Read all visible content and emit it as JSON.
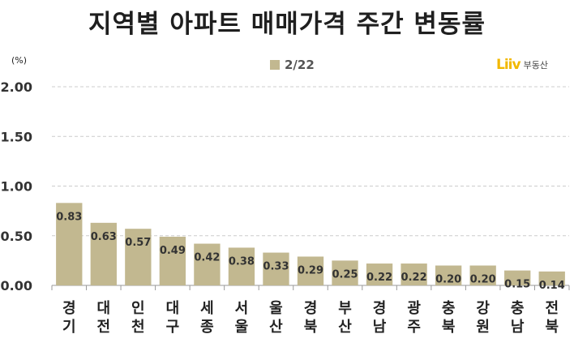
{
  "title": "지역별 아파트 매매가격 주간 변동률",
  "unit_label": "(%)",
  "logo": {
    "mark": "Liiv",
    "text": "부동산",
    "color": "#f2b800"
  },
  "colors": {
    "bar": "#c2b890",
    "axis": "#999999",
    "grid": "#cccccc"
  },
  "chart_data": {
    "type": "bar",
    "title": "지역별 아파트 매매가격 주간 변동률",
    "xlabel": "",
    "ylabel": "(%)",
    "categories": [
      "경기",
      "대전",
      "인천",
      "대구",
      "세종",
      "서울",
      "울산",
      "경북",
      "부산",
      "경남",
      "광주",
      "충북",
      "강원",
      "충남",
      "전북"
    ],
    "series": [
      {
        "name": "2/22",
        "values": [
          0.83,
          0.63,
          0.57,
          0.49,
          0.42,
          0.38,
          0.33,
          0.29,
          0.25,
          0.22,
          0.22,
          0.2,
          0.2,
          0.15,
          0.14
        ]
      }
    ],
    "value_labels": [
      "0.83",
      "0.63",
      "0.57",
      "0.49",
      "0.42",
      "0.38",
      "0.33",
      "0.29",
      "0.25",
      "0.22",
      "0.22",
      "0.20",
      "0.20",
      "0.15",
      "0.14"
    ],
    "ylim": [
      0,
      2.0
    ],
    "yticks": [
      0,
      0.5,
      1.0,
      1.5,
      2.0
    ],
    "ytick_labels": [
      "0.00",
      "0.50",
      "1.00",
      "1.50",
      "2.00"
    ],
    "grid": true,
    "grid_style": "dashed",
    "legend_position": "top-center"
  }
}
